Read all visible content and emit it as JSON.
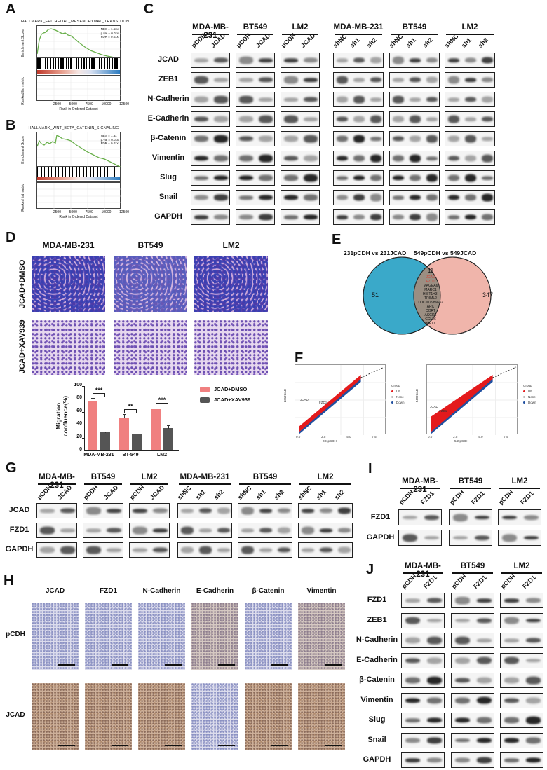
{
  "panels": {
    "A": {
      "label": "A",
      "title": "HALLMARK_EPITHELIAL_MESENCHYMAL_TRANSITION",
      "stats": [
        "NES = 1.5xx",
        "p.val = 0.0xx",
        "FDR = 0.0xx"
      ],
      "ylabel_top": "Enrichment Score",
      "ylabel_bottom": "Ranked list metric",
      "xlabel": "Rank in Ordered Dataset",
      "yticks_top": [
        "0.0",
        "0.1",
        "0.2",
        "0.3",
        "0.4"
      ],
      "yticks_bottom": [
        "0",
        "10",
        "20",
        "30",
        "40"
      ],
      "xticks": [
        "2500",
        "5000",
        "7500",
        "10000",
        "12500"
      ]
    },
    "B": {
      "label": "B",
      "title": "HALLMARK_WNT_BETA_CATENIN_SIGNALING",
      "stats": [
        "NES = 1.3x",
        "p.val = 0.0xx",
        "FDR = 0.0xx"
      ],
      "ylabel_top": "Enrichment Score",
      "ylabel_bottom": "Ranked list metric",
      "xlabel": "Rank in Ordered Dataset",
      "yticks_top": [
        "0.0",
        "0.1",
        "0.2",
        "0.3",
        "0.4",
        "0.5"
      ],
      "yticks_bottom": [
        "0",
        "10",
        "20",
        "30",
        "40"
      ],
      "xticks": [
        "2500",
        "5000",
        "7500",
        "10000",
        "12500"
      ]
    },
    "C": {
      "label": "C",
      "groups_oe": [
        {
          "name": "MDA-MB-231",
          "lanes": [
            "pCDH",
            "JCAD"
          ]
        },
        {
          "name": "BT549",
          "lanes": [
            "pCDH",
            "JCAD"
          ]
        },
        {
          "name": "LM2",
          "lanes": [
            "pCDH",
            "JCAD"
          ]
        }
      ],
      "groups_kd": [
        {
          "name": "MDA-MB-231",
          "lanes": [
            "shNC",
            "sh1",
            "sh2"
          ]
        },
        {
          "name": "BT549",
          "lanes": [
            "shNC",
            "sh1",
            "sh2"
          ]
        },
        {
          "name": "LM2",
          "lanes": [
            "shNC",
            "sh1",
            "sh2"
          ]
        }
      ],
      "rows": [
        "JCAD",
        "ZEB1",
        "N-Cadherin",
        "E-Cadherin",
        "β-Catenin",
        "Vimentin",
        "Slug",
        "Snail",
        "GAPDH"
      ]
    },
    "D": {
      "label": "D",
      "columns": [
        "MDA-MB-231",
        "BT549",
        "LM2"
      ],
      "rows": [
        "JCAD+DMSO",
        "JCAD+XAV939"
      ]
    },
    "E": {
      "label": "E",
      "set_left": "231pCDH vs 231JCAD",
      "set_right": "549pCDH vs 549JCAD",
      "left_only": "51",
      "right_only": "347",
      "overlap": "11",
      "overlap_genes_highlight": [
        "JCAD",
        "FZD1"
      ],
      "overlap_genes": [
        "MAGEA6",
        "MARC1",
        "HIST1H3I",
        "TRIML2",
        "LOC107986632",
        "ARC",
        "CORT",
        "ASGR1",
        "CCL26",
        "KIF17"
      ],
      "colors": {
        "left": "#3aa9c9",
        "right": "#f0b5ab",
        "overlap": "#9b8e82",
        "highlight": "#d0443a"
      }
    },
    "F": {
      "label": "F",
      "left": {
        "xlabel": "231pCDH",
        "ylabel": "231JCAD",
        "ticks": [
          "0.0",
          "2.5",
          "5.0",
          "7.5"
        ],
        "annotations": [
          "JCAD",
          "FZD1"
        ]
      },
      "right": {
        "xlabel": "549pCDH",
        "ylabel": "549JCAD",
        "ticks": [
          "0.0",
          "2.5",
          "5.0",
          "7.5"
        ],
        "annotations": [
          "JCAD",
          "FZD1"
        ]
      },
      "legend_title": "Group",
      "legend": [
        {
          "name": "UP",
          "color": "#e41a1c"
        },
        {
          "name": "None",
          "color": "#bbbbbb"
        },
        {
          "name": "Down",
          "color": "#1f4fa0"
        }
      ]
    },
    "G": {
      "label": "G",
      "groups_oe": [
        {
          "name": "MDA-MB-231",
          "lanes": [
            "pCDH",
            "JCAD"
          ]
        },
        {
          "name": "BT549",
          "lanes": [
            "pCDH",
            "JCAD"
          ]
        },
        {
          "name": "LM2",
          "lanes": [
            "pCDH",
            "JCAD"
          ]
        }
      ],
      "groups_kd": [
        {
          "name": "MDA-MB-231",
          "lanes": [
            "shNC",
            "sh1",
            "sh2"
          ]
        },
        {
          "name": "BT549",
          "lanes": [
            "shNC",
            "sh1",
            "sh2"
          ]
        },
        {
          "name": "LM2",
          "lanes": [
            "shNC",
            "sh1",
            "sh2"
          ]
        }
      ],
      "rows": [
        "JCAD",
        "FZD1",
        "GAPDH"
      ]
    },
    "H": {
      "label": "H",
      "columns": [
        "JCAD",
        "FZD1",
        "N-Cadherin",
        "E-Cadherin",
        "β-Catenin",
        "Vimentin"
      ],
      "rows": [
        "pCDH",
        "JCAD"
      ]
    },
    "I": {
      "label": "I",
      "groups": [
        {
          "name": "MDA-MB-231",
          "lanes": [
            "pCDH",
            "FZD1"
          ]
        },
        {
          "name": "BT549",
          "lanes": [
            "pCDH",
            "FZD1"
          ]
        },
        {
          "name": "LM2",
          "lanes": [
            "pCDH",
            "FZD1"
          ]
        }
      ],
      "rows": [
        "FZD1",
        "GAPDH"
      ]
    },
    "J": {
      "label": "J",
      "groups": [
        {
          "name": "MDA-MB-231",
          "lanes": [
            "pCDH",
            "FZD1"
          ]
        },
        {
          "name": "BT549",
          "lanes": [
            "pCDH",
            "FZD1"
          ]
        },
        {
          "name": "LM2",
          "lanes": [
            "pCDH",
            "FZD1"
          ]
        }
      ],
      "rows": [
        "FZD1",
        "ZEB1",
        "N-Cadherin",
        "E-Cadherin",
        "β-Catenin",
        "Vimentin",
        "Slug",
        "Snail",
        "GAPDH"
      ]
    }
  },
  "chart_data": [
    {
      "type": "bar",
      "title": "",
      "categories": [
        "MDA-MB-231",
        "BT-549",
        "LM2"
      ],
      "series": [
        {
          "name": "JCAD+DMSO",
          "color": "#f08080",
          "values": [
            76,
            50,
            63
          ],
          "errors": [
            6,
            7,
            3
          ]
        },
        {
          "name": "JCAD+XAV939",
          "color": "#555555",
          "values": [
            27,
            24,
            34
          ],
          "errors": [
            2,
            2,
            5
          ]
        }
      ],
      "significance": [
        "***",
        "**",
        "***"
      ],
      "xlabel": "",
      "ylabel": "Migration confluence(%)",
      "ylim": [
        0,
        100
      ],
      "yticks": [
        "0",
        "20",
        "40",
        "60",
        "80",
        "100"
      ],
      "legend_position": "right"
    },
    {
      "type": "line",
      "title": "HALLMARK_EPITHELIAL_MESENCHYMAL_TRANSITION",
      "xlabel": "Rank in Ordered Dataset",
      "ylabel": "Enrichment Score",
      "x": [
        0,
        1000,
        2500,
        4000,
        5000,
        7500,
        10000,
        12000,
        12500
      ],
      "values": [
        0.0,
        0.38,
        0.42,
        0.36,
        0.34,
        0.22,
        0.1,
        0.02,
        0.0
      ],
      "ylim": [
        0,
        0.45
      ]
    },
    {
      "type": "line",
      "title": "HALLMARK_WNT_BETA_CATENIN_SIGNALING",
      "xlabel": "Rank in Ordered Dataset",
      "ylabel": "Enrichment Score",
      "x": [
        0,
        500,
        2500,
        3000,
        5000,
        7500,
        10000,
        12500
      ],
      "values": [
        0.3,
        0.38,
        0.38,
        0.48,
        0.42,
        0.3,
        0.2,
        0.0
      ],
      "ylim": [
        0,
        0.5
      ]
    }
  ]
}
